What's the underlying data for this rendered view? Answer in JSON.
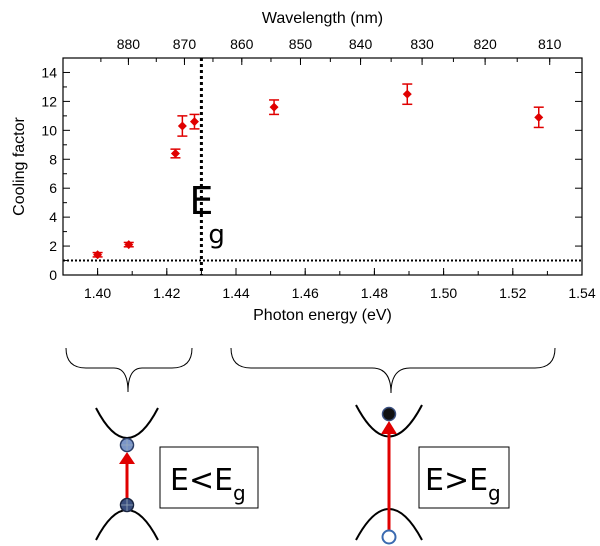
{
  "chart_data": {
    "type": "scatter",
    "xlabel": "Photon energy (eV)",
    "ylabel": "Cooling factor",
    "top_xlabel": "Wavelength (nm)",
    "xlim": [
      1.39,
      1.54
    ],
    "ylim": [
      0,
      15
    ],
    "x_ticks": [
      1.4,
      1.42,
      1.44,
      1.46,
      1.48,
      1.5,
      1.52,
      1.54
    ],
    "x_tick_labels": [
      "1.40",
      "1.42",
      "1.44",
      "1.46",
      "1.48",
      "1.50",
      "1.52",
      "1.54"
    ],
    "y_ticks": [
      0,
      2,
      4,
      6,
      8,
      10,
      12,
      14
    ],
    "y_tick_labels": [
      "0",
      "2",
      "4",
      "6",
      "8",
      "10",
      "12",
      "14"
    ],
    "top_ticks_nm": [
      880,
      870,
      860,
      850,
      840,
      830,
      820,
      810
    ],
    "top_tick_labels": [
      "880",
      "870",
      "860",
      "850",
      "840",
      "830",
      "820",
      "810"
    ],
    "series": [
      {
        "color": "#e00000",
        "points": [
          {
            "x": 1.4,
            "y": 1.4,
            "err": 0.15
          },
          {
            "x": 1.409,
            "y": 2.1,
            "err": 0.15
          },
          {
            "x": 1.4225,
            "y": 8.4,
            "err": 0.3
          },
          {
            "x": 1.4245,
            "y": 10.3,
            "err": 0.7
          },
          {
            "x": 1.428,
            "y": 10.6,
            "err": 0.5
          },
          {
            "x": 1.451,
            "y": 11.6,
            "err": 0.5
          },
          {
            "x": 1.4895,
            "y": 12.5,
            "err": 0.7
          },
          {
            "x": 1.5275,
            "y": 10.9,
            "err": 0.7
          }
        ]
      }
    ],
    "bandgap_x": 1.43,
    "baseline_y": 1.0,
    "bandgap_label": "E",
    "bandgap_sub": "g",
    "annotations": {
      "left_label_main": "E<E",
      "left_label_sub": "g",
      "right_label_main": "E>E",
      "right_label_sub": "g"
    }
  }
}
